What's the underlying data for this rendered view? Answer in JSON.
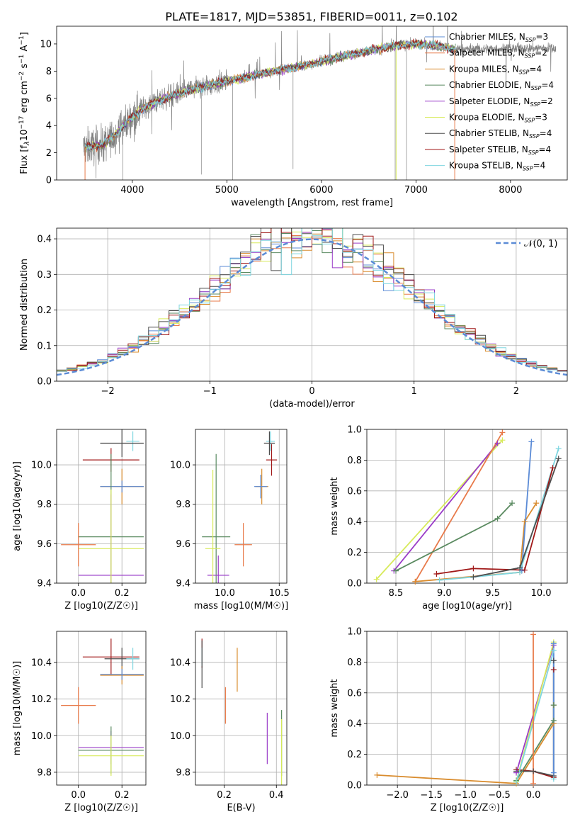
{
  "title": "PLATE=1817, MJD=53851, FIBERID=0011, z=0.102",
  "colors": {
    "Chabrier MILES": "#5b8bd6",
    "Salpeter MILES": "#e87a4a",
    "Kroupa MILES": "#d98c2e",
    "Chabrier ELODIE": "#5a8a60",
    "Salpeter ELODIE": "#9a3cc8",
    "Kroupa ELODIE": "#d7ea5a",
    "Chabrier STELIB": "#4d4d4d",
    "Salpeter STELIB": "#a01818",
    "Kroupa STELIB": "#7fd6e0",
    "data": "#808080",
    "normal_curve": "#5b8bd6",
    "pink": "#e88ac0"
  },
  "labels": {
    "p1_xlabel": "wavelength [Angstrom, rest frame]",
    "p1_ylabel": "Flux [f_λ10^-17 erg cm^-2 s^-1 A^-1]",
    "p2_xlabel": "(data-model)/error",
    "p2_ylabel": "Normed distribution",
    "p2_legend": "𝒩(0, 1)",
    "z_xlabel": "Z [log10(Z/Z☉)]",
    "mass_xlabel": "mass [log10(M/M☉)]",
    "age_ylabel": "age  [log10(age/yr)]",
    "mass_ylabel": "mass [log10(M/M☉)]",
    "age_xlabel": "age  [log10(age/yr)]",
    "mw_ylabel": "mass weight",
    "ebv_xlabel": "E(B-V)"
  },
  "chart_data": [
    {
      "type": "line",
      "title": "PLATE=1817, MJD=53851, FIBERID=0011, z=0.102",
      "xlabel": "wavelength [Angstrom, rest frame]",
      "ylabel": "Flux [f_λ10^-17 erg cm^-2 s^-1 A^-1]",
      "xlim": [
        3200,
        8600
      ],
      "ylim": [
        0,
        11.3
      ],
      "xticks": [
        4000,
        5000,
        6000,
        7000,
        8000
      ],
      "yticks": [
        0,
        2,
        4,
        6,
        8,
        10
      ],
      "grid": false,
      "legend_position": "right",
      "legend": [
        {
          "name": "Chabrier MILES",
          "nssp": "3"
        },
        {
          "name": "Salpeter MILES",
          "nssp": "2"
        },
        {
          "name": "Kroupa MILES",
          "nssp": "4"
        },
        {
          "name": "Chabrier ELODIE",
          "nssp": "4"
        },
        {
          "name": "Salpeter ELODIE",
          "nssp": "2"
        },
        {
          "name": "Kroupa ELODIE",
          "nssp": "3"
        },
        {
          "name": "Chabrier STELIB",
          "nssp": "4"
        },
        {
          "name": "Salpeter STELIB",
          "nssp": "4"
        },
        {
          "name": "Kroupa STELIB",
          "nssp": "4"
        }
      ],
      "model_continuum": {
        "x": [
          3500,
          3700,
          3800,
          3950,
          4100,
          4300,
          4600,
          4900,
          5100,
          5300,
          5500,
          5800,
          6000,
          6300,
          6500,
          6800,
          7000,
          7200,
          7400
        ],
        "y": [
          2.4,
          2.6,
          3.2,
          4.3,
          5.2,
          5.9,
          6.6,
          7.1,
          7.4,
          7.7,
          8.0,
          8.4,
          8.7,
          9.2,
          9.5,
          9.9,
          10.0,
          9.9,
          9.6
        ]
      },
      "data_extent": [
        3480,
        8480
      ]
    },
    {
      "type": "line",
      "xlabel": "(data-model)/error",
      "ylabel": "Normed distribution",
      "xlim": [
        -2.5,
        2.5
      ],
      "ylim": [
        0,
        0.43
      ],
      "xticks": [
        -2,
        -1,
        0,
        1,
        2
      ],
      "yticks": [
        0.0,
        0.1,
        0.2,
        0.3,
        0.4
      ],
      "grid": true,
      "legend_position": "top-right",
      "series": [
        {
          "name": "𝒩(0, 1)",
          "style": "dashed",
          "mu": 0,
          "sigma": 1
        }
      ],
      "histograms": "9 step histograms (one per model) closely following the normal curve"
    },
    {
      "type": "scatter",
      "xlabel": "Z [log10(Z/Z☉)]",
      "ylabel": "age  [log10(age/yr)]",
      "xlim": [
        -0.1,
        0.31
      ],
      "ylim": [
        9.4,
        10.18
      ],
      "xticks": [
        0.0,
        0.2
      ],
      "yticks": [
        9.4,
        9.6,
        9.8,
        10.0
      ],
      "grid": true,
      "points": [
        {
          "model": "Kroupa STELIB",
          "x": 0.25,
          "y": 10.12,
          "xerr": 0.03,
          "yerr": 0.05
        },
        {
          "model": "Chabrier STELIB",
          "x": 0.2,
          "y": 10.11,
          "xerr": 0.1,
          "yerr": 0.07
        },
        {
          "model": "Salpeter STELIB",
          "x": 0.15,
          "y": 10.025,
          "xerr": 0.13,
          "yerr": 0.06
        },
        {
          "model": "Kroupa MILES",
          "x": 0.2,
          "y": 9.89,
          "xerr": 0.1,
          "yerr": 0.09
        },
        {
          "model": "Chabrier MILES",
          "x": 0.2,
          "y": 9.89,
          "xerr": 0.1,
          "yerr": 0.03
        },
        {
          "model": "Chabrier ELODIE",
          "x": 0.15,
          "y": 9.635,
          "xerr": 0.15,
          "yerr": 0.42
        },
        {
          "model": "Salpeter ELODIE",
          "x": 0.15,
          "y": 9.44,
          "xerr": 0.15,
          "yerr": 0.41
        },
        {
          "model": "Kroupa ELODIE",
          "x": 0.15,
          "y": 9.575,
          "xerr": 0.15,
          "yerr": 0.3
        },
        {
          "model": "Salpeter MILES",
          "x": 0.0,
          "y": 9.595,
          "xerr": 0.08,
          "yerr": 0.11
        }
      ]
    },
    {
      "type": "scatter",
      "xlabel": "mass [log10(M/M☉)]",
      "ylabel": "",
      "xlim": [
        9.73,
        10.57
      ],
      "ylim": [
        9.4,
        10.18
      ],
      "xticks": [
        10.0,
        10.5
      ],
      "yticks": [
        9.4,
        9.6,
        9.8,
        10.0
      ],
      "grid": true,
      "points": [
        {
          "model": "Kroupa STELIB",
          "x": 10.42,
          "y": 10.12,
          "xerr": 0.04,
          "yerr": 0.05
        },
        {
          "model": "Chabrier STELIB",
          "x": 10.41,
          "y": 10.11,
          "xerr": 0.05,
          "yerr": 0.06
        },
        {
          "model": "Salpeter STELIB",
          "x": 10.43,
          "y": 10.025,
          "xerr": 0.05,
          "yerr": 0.08
        },
        {
          "model": "Kroupa MILES",
          "x": 10.34,
          "y": 9.89,
          "xerr": 0.06,
          "yerr": 0.09
        },
        {
          "model": "Chabrier MILES",
          "x": 10.33,
          "y": 9.89,
          "xerr": 0.06,
          "yerr": 0.06
        },
        {
          "model": "Chabrier ELODIE",
          "x": 9.92,
          "y": 9.635,
          "xerr": 0.13,
          "yerr": 0.42
        },
        {
          "model": "Salpeter ELODIE",
          "x": 9.94,
          "y": 9.44,
          "xerr": 0.1,
          "yerr": 0.1
        },
        {
          "model": "Kroupa ELODIE",
          "x": 9.89,
          "y": 9.575,
          "xerr": 0.07,
          "yerr": 0.4
        },
        {
          "model": "Salpeter MILES",
          "x": 10.17,
          "y": 9.595,
          "xerr": 0.08,
          "yerr": 0.11
        }
      ]
    },
    {
      "type": "line",
      "xlabel": "age  [log10(age/yr)]",
      "ylabel": "mass weight",
      "xlim": [
        8.2,
        10.27
      ],
      "ylim": [
        0,
        1.0
      ],
      "xticks": [
        8.5,
        9.0,
        9.5,
        10.0
      ],
      "yticks": [
        0.0,
        0.2,
        0.4,
        0.6,
        0.8,
        1.0
      ],
      "grid": true,
      "series": [
        {
          "model": "Kroupa ELODIE",
          "points": [
            [
              8.3,
              0.025
            ],
            [
              9.6,
              0.93
            ]
          ]
        },
        {
          "model": "Salpeter ELODIE",
          "points": [
            [
              8.48,
              0.08
            ],
            [
              9.55,
              0.91
            ]
          ]
        },
        {
          "model": "Salpeter MILES",
          "points": [
            [
              8.7,
              0.01
            ],
            [
              9.6,
              0.98
            ]
          ]
        },
        {
          "model": "Chabrier ELODIE",
          "points": [
            [
              8.5,
              0.08
            ],
            [
              9.55,
              0.42
            ],
            [
              9.7,
              0.52
            ]
          ]
        },
        {
          "model": "Kroupa MILES",
          "points": [
            [
              8.7,
              0.01
            ],
            [
              9.78,
              0.07
            ],
            [
              9.83,
              0.4
            ],
            [
              9.95,
              0.52
            ]
          ]
        },
        {
          "model": "Chabrier MILES",
          "points": [
            [
              9.8,
              0.08
            ],
            [
              9.9,
              0.92
            ]
          ]
        },
        {
          "model": "Kroupa STELIB",
          "points": [
            [
              8.95,
              0.02
            ],
            [
              9.3,
              0.04
            ],
            [
              9.78,
              0.07
            ],
            [
              10.18,
              0.875
            ]
          ]
        },
        {
          "model": "Salpeter STELIB",
          "points": [
            [
              8.92,
              0.06
            ],
            [
              9.3,
              0.095
            ],
            [
              9.83,
              0.085
            ],
            [
              10.12,
              0.75
            ]
          ]
        },
        {
          "model": "Chabrier STELIB",
          "points": [
            [
              9.3,
              0.04
            ],
            [
              9.78,
              0.1
            ],
            [
              10.18,
              0.81
            ]
          ]
        }
      ]
    },
    {
      "type": "scatter",
      "xlabel": "Z [log10(Z/Z☉)]",
      "ylabel": "mass [log10(M/M☉)]",
      "xlim": [
        -0.1,
        0.31
      ],
      "ylim": [
        9.73,
        10.57
      ],
      "xticks": [
        0.0,
        0.2
      ],
      "yticks": [
        9.8,
        10.0,
        10.2,
        10.4
      ],
      "grid": true,
      "points": [
        {
          "model": "Salpeter STELIB",
          "x": 0.15,
          "y": 10.43,
          "xerr": 0.13,
          "yerr": 0.1
        },
        {
          "model": "Chabrier STELIB",
          "x": 0.2,
          "y": 10.42,
          "xerr": 0.08,
          "yerr": 0.06
        },
        {
          "model": "Kroupa STELIB",
          "x": 0.25,
          "y": 10.42,
          "xerr": 0.03,
          "yerr": 0.06
        },
        {
          "model": "Kroupa MILES",
          "x": 0.2,
          "y": 10.33,
          "xerr": 0.1,
          "yerr": 0.05
        },
        {
          "model": "Chabrier MILES",
          "x": 0.2,
          "y": 10.335,
          "xerr": 0.1,
          "yerr": 0.03
        },
        {
          "model": "Salpeter MILES",
          "x": 0.0,
          "y": 10.165,
          "xerr": 0.08,
          "yerr": 0.1
        },
        {
          "model": "Salpeter ELODIE",
          "x": 0.15,
          "y": 9.935,
          "xerr": 0.15,
          "yerr": 0.09
        },
        {
          "model": "Chabrier ELODIE",
          "x": 0.15,
          "y": 9.92,
          "xerr": 0.15,
          "yerr": 0.13
        },
        {
          "model": "Kroupa ELODIE",
          "x": 0.15,
          "y": 9.89,
          "xerr": 0.15,
          "yerr": 0.11
        }
      ]
    },
    {
      "type": "scatter",
      "xlabel": "E(B-V)",
      "ylabel": "",
      "xlim": [
        0.09,
        0.44
      ],
      "ylim": [
        9.73,
        10.57
      ],
      "xticks": [
        0.2,
        0.4
      ],
      "yticks": [
        9.8,
        10.0,
        10.2,
        10.4
      ],
      "grid": true,
      "points": [
        {
          "model": "Salpeter STELIB",
          "x": 0.115,
          "y": 10.45,
          "yerr": 0.08
        },
        {
          "model": "Kroupa STELIB",
          "x": 0.115,
          "y": 10.43,
          "yerr": 0.05
        },
        {
          "model": "Chabrier STELIB",
          "x": 0.115,
          "y": 10.39,
          "yerr": 0.13
        },
        {
          "model": "Salpeter MILES",
          "x": 0.205,
          "y": 10.165,
          "yerr": 0.1
        },
        {
          "model": "Kroupa MILES",
          "x": 0.25,
          "y": 10.36,
          "yerr": 0.12
        },
        {
          "model": "Salpeter ELODIE",
          "x": 0.365,
          "y": 9.985,
          "yerr": 0.14
        },
        {
          "model": "Chabrier ELODIE",
          "x": 0.42,
          "y": 9.96,
          "yerr": 0.18
        },
        {
          "model": "Kroupa ELODIE",
          "x": 0.42,
          "y": 9.91,
          "yerr": 0.18
        }
      ]
    },
    {
      "type": "line",
      "xlabel": "Z [log10(Z/Z☉)]",
      "ylabel": "mass weight",
      "xlim": [
        -2.45,
        0.5
      ],
      "ylim": [
        0,
        1.0
      ],
      "xticks": [
        -2.0,
        -1.5,
        -1.0,
        -0.5,
        0.0
      ],
      "yticks": [
        0.0,
        0.2,
        0.4,
        0.6,
        0.8,
        1.0
      ],
      "grid": true,
      "series": [
        {
          "model": "Kroupa MILES",
          "points": [
            [
              -2.3,
              0.065
            ],
            [
              -0.25,
              0.01
            ],
            [
              0.3,
              0.4
            ],
            [
              0.3,
              0.52
            ]
          ]
        },
        {
          "model": "Salpeter STELIB",
          "points": [
            [
              -0.25,
              0.1
            ],
            [
              0.0,
              0.09
            ],
            [
              0.3,
              0.05
            ],
            [
              0.3,
              0.75
            ]
          ]
        },
        {
          "model": "Chabrier STELIB",
          "points": [
            [
              -0.25,
              0.09
            ],
            [
              0.0,
              0.09
            ],
            [
              0.3,
              0.06
            ],
            [
              0.3,
              0.81
            ]
          ]
        },
        {
          "model": "Chabrier ELODIE",
          "points": [
            [
              -0.25,
              0.03
            ],
            [
              0.3,
              0.42
            ],
            [
              0.3,
              0.52
            ]
          ]
        },
        {
          "model": "Salpeter ELODIE",
          "points": [
            [
              -0.25,
              0.08
            ],
            [
              0.3,
              0.91
            ]
          ]
        },
        {
          "model": "Kroupa ELODIE",
          "points": [
            [
              -0.25,
              0.025
            ],
            [
              0.3,
              0.93
            ]
          ]
        },
        {
          "model": "Kroupa STELIB",
          "points": [
            [
              -0.25,
              0.02
            ],
            [
              0.3,
              0.875
            ],
            [
              0.3,
              0.04
            ]
          ]
        },
        {
          "model": "Salpeter MILES",
          "points": [
            [
              0.0,
              0.01
            ],
            [
              0.0,
              0.98
            ]
          ]
        },
        {
          "model": "Chabrier MILES",
          "points": [
            [
              0.3,
              0.08
            ],
            [
              0.3,
              0.92
            ]
          ]
        }
      ]
    }
  ]
}
